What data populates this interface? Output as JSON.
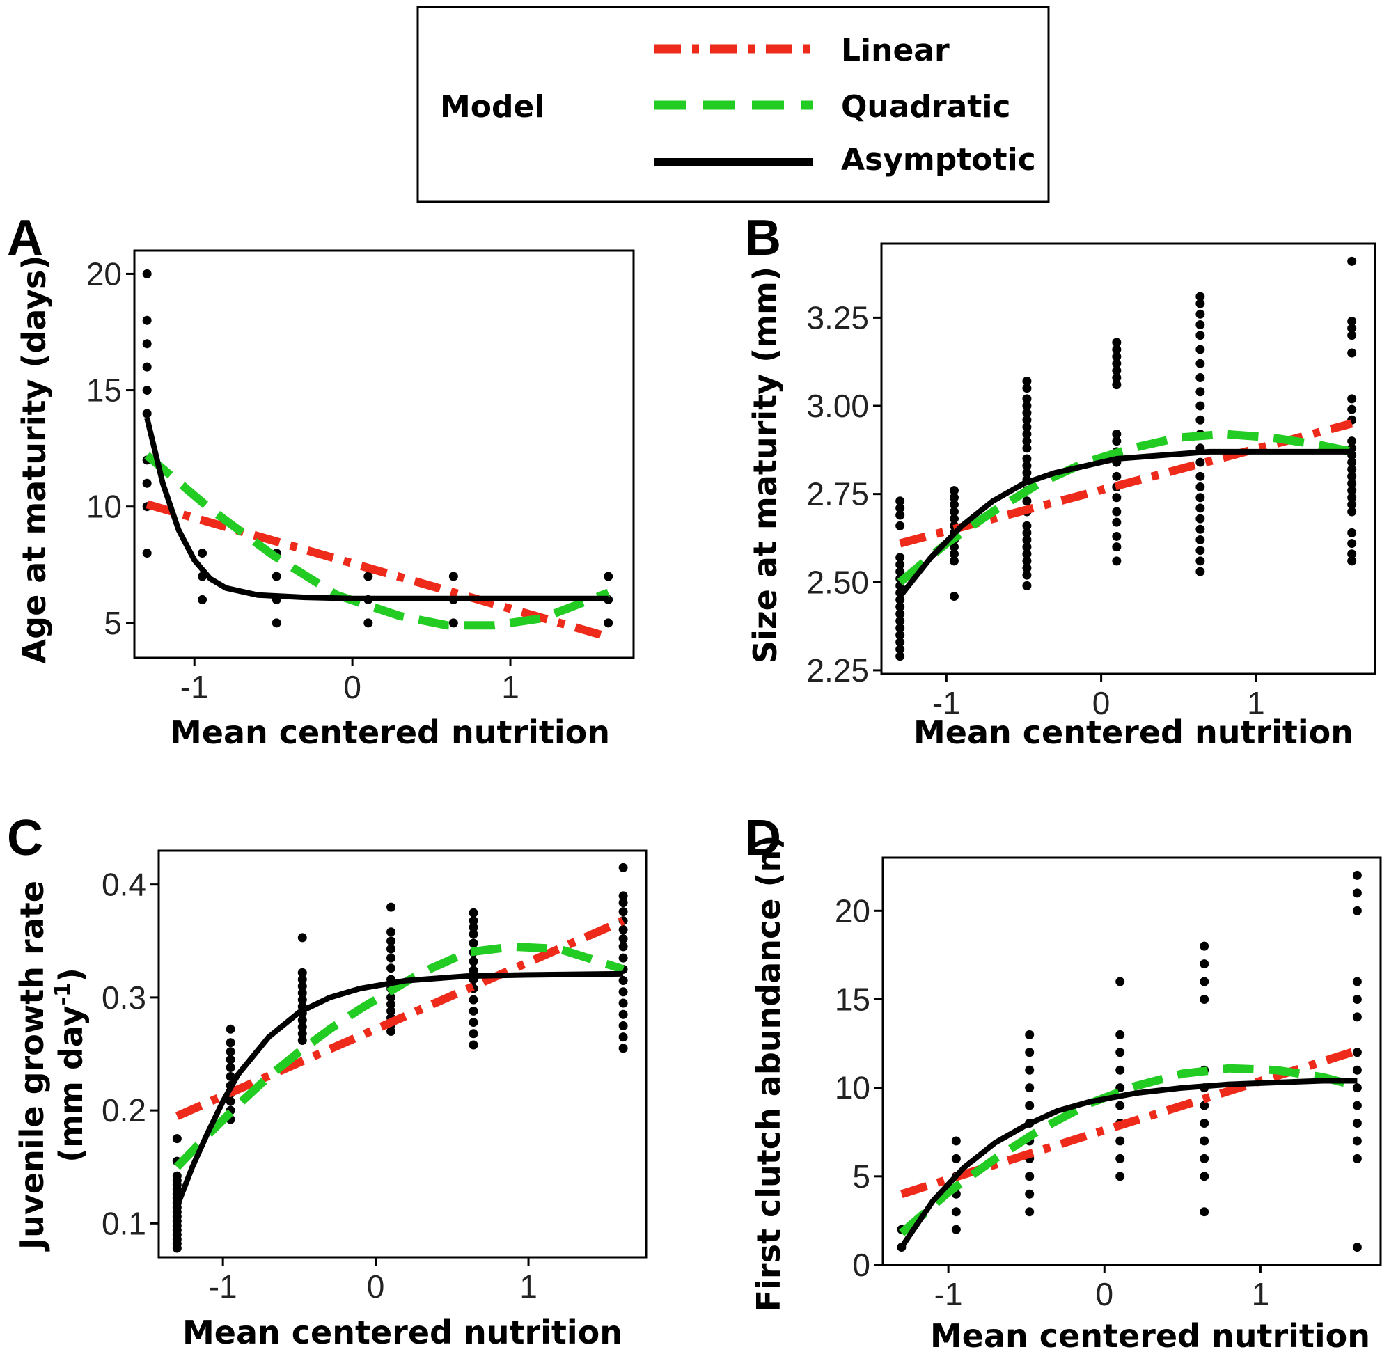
{
  "legend": {
    "title": "Model",
    "entries": [
      {
        "label": "Linear",
        "color": "#ee2b1a",
        "style": "dashdot"
      },
      {
        "label": "Quadratic",
        "color": "#22cc22",
        "style": "dashed"
      },
      {
        "label": "Asymptotic",
        "color": "#000000",
        "style": "solid"
      }
    ]
  },
  "chart_data": [
    {
      "panel": "A",
      "type": "scatter",
      "title": "",
      "xlabel": "Mean centered nutrition",
      "ylabel": "Age at maturity (days)",
      "xlim": [
        -1.38,
        1.78
      ],
      "ylim": [
        3.5,
        21.0
      ],
      "xticks": [
        -1,
        0,
        1
      ],
      "xtick_labels": [
        "-1",
        "0",
        "1"
      ],
      "yticks": [
        5,
        10,
        15,
        20
      ],
      "ytick_labels": [
        "5",
        "10",
        "15",
        "20"
      ],
      "points": {
        "x_levels": [
          -1.3,
          -0.95,
          -0.48,
          0.1,
          0.64,
          1.62
        ],
        "y_values": [
          [
            8,
            10,
            11,
            12,
            14,
            15,
            16,
            17,
            18,
            20
          ],
          [
            6,
            7,
            8
          ],
          [
            5,
            6,
            7,
            8
          ],
          [
            5,
            6,
            7
          ],
          [
            5,
            6,
            7
          ],
          [
            5,
            6,
            7
          ]
        ]
      },
      "fits": [
        {
          "model": "Linear",
          "x": [
            -1.3,
            1.62
          ],
          "y": [
            10.1,
            4.4
          ]
        },
        {
          "model": "Quadratic",
          "x": [
            -1.3,
            -0.9,
            -0.5,
            -0.1,
            0.3,
            0.6,
            0.9,
            1.2,
            1.62
          ],
          "y": [
            12.2,
            9.9,
            7.9,
            6.2,
            5.3,
            4.9,
            4.9,
            5.2,
            6.3
          ]
        },
        {
          "model": "Asymptotic",
          "x": [
            -1.3,
            -1.2,
            -1.1,
            -1.0,
            -0.9,
            -0.8,
            -0.6,
            -0.3,
            0.0,
            0.5,
            1.0,
            1.62
          ],
          "y": [
            13.8,
            11.0,
            9.0,
            7.7,
            6.9,
            6.5,
            6.2,
            6.1,
            6.05,
            6.05,
            6.05,
            6.05
          ]
        }
      ]
    },
    {
      "panel": "B",
      "type": "scatter",
      "title": "",
      "xlabel": "Mean centered nutrition",
      "ylabel": "Size at maturity (mm)",
      "xlim": [
        -1.42,
        1.77
      ],
      "ylim": [
        2.24,
        3.46
      ],
      "xticks": [
        -1,
        0,
        1
      ],
      "xtick_labels": [
        "-1",
        "0",
        "1"
      ],
      "yticks": [
        2.25,
        2.5,
        2.75,
        3.0,
        3.25
      ],
      "ytick_labels": [
        "2.25",
        "2.50",
        "2.75",
        "3.00",
        "3.25"
      ],
      "points": {
        "x_levels": [
          -1.3,
          -0.95,
          -0.48,
          0.1,
          0.64,
          1.62
        ],
        "y_values": [
          [
            2.29,
            2.31,
            2.33,
            2.35,
            2.37,
            2.39,
            2.41,
            2.43,
            2.45,
            2.47,
            2.49,
            2.51,
            2.53,
            2.55,
            2.57,
            2.66,
            2.69,
            2.71,
            2.73
          ],
          [
            2.46,
            2.56,
            2.58,
            2.6,
            2.62,
            2.64,
            2.66,
            2.68,
            2.7,
            2.72,
            2.74,
            2.76
          ],
          [
            2.49,
            2.52,
            2.54,
            2.56,
            2.58,
            2.6,
            2.62,
            2.64,
            2.66,
            2.7,
            2.73,
            2.76,
            2.79,
            2.81,
            2.83,
            2.85,
            2.88,
            2.9,
            2.92,
            2.94,
            2.96,
            2.98,
            3.0,
            3.02,
            3.05,
            3.07
          ],
          [
            2.56,
            2.6,
            2.63,
            2.67,
            2.7,
            2.74,
            2.77,
            2.8,
            2.84,
            2.87,
            2.9,
            2.92,
            3.06,
            3.08,
            3.1,
            3.12,
            3.14,
            3.16,
            3.18
          ],
          [
            2.53,
            2.56,
            2.59,
            2.62,
            2.65,
            2.68,
            2.71,
            2.74,
            2.77,
            2.8,
            2.84,
            2.88,
            2.92,
            2.96,
            3.0,
            3.04,
            3.08,
            3.12,
            3.16,
            3.2,
            3.23,
            3.26,
            3.29,
            3.31
          ],
          [
            2.56,
            2.58,
            2.61,
            2.64,
            2.7,
            2.72,
            2.74,
            2.76,
            2.78,
            2.8,
            2.82,
            2.84,
            2.86,
            2.88,
            2.9,
            2.96,
            2.99,
            3.02,
            3.15,
            3.2,
            3.22,
            3.24,
            3.41
          ]
        ]
      },
      "fits": [
        {
          "model": "Linear",
          "x": [
            -1.3,
            1.62
          ],
          "y": [
            2.61,
            2.95
          ]
        },
        {
          "model": "Quadratic",
          "x": [
            -1.3,
            -1.0,
            -0.7,
            -0.4,
            -0.1,
            0.2,
            0.5,
            0.8,
            1.1,
            1.4,
            1.62
          ],
          "y": [
            2.5,
            2.61,
            2.7,
            2.78,
            2.84,
            2.88,
            2.91,
            2.92,
            2.91,
            2.89,
            2.87
          ]
        },
        {
          "model": "Asymptotic",
          "x": [
            -1.3,
            -1.1,
            -0.9,
            -0.7,
            -0.5,
            -0.3,
            -0.1,
            0.1,
            0.4,
            0.7,
            1.0,
            1.3,
            1.62
          ],
          "y": [
            2.46,
            2.57,
            2.66,
            2.73,
            2.78,
            2.81,
            2.83,
            2.85,
            2.86,
            2.87,
            2.87,
            2.87,
            2.87
          ]
        }
      ]
    },
    {
      "panel": "C",
      "type": "scatter",
      "title": "",
      "xlabel": "Mean centered nutrition",
      "ylabel": "Juvenile growth rate",
      "ylabel_line2": "(mm day",
      "ylabel_sup": "-1",
      "ylabel_close": ")",
      "xlim": [
        -1.42,
        1.77
      ],
      "ylim": [
        0.07,
        0.43
      ],
      "xticks": [
        -1,
        0,
        1
      ],
      "xtick_labels": [
        "-1",
        "0",
        "1"
      ],
      "yticks": [
        0.1,
        0.2,
        0.3,
        0.4
      ],
      "ytick_labels": [
        "0.1",
        "0.2",
        "0.3",
        "0.4"
      ],
      "points": {
        "x_levels": [
          -1.3,
          -0.95,
          -0.48,
          0.1,
          0.64,
          1.62
        ],
        "y_values": [
          [
            0.078,
            0.082,
            0.086,
            0.09,
            0.094,
            0.098,
            0.102,
            0.106,
            0.11,
            0.114,
            0.118,
            0.122,
            0.126,
            0.13,
            0.134,
            0.138,
            0.142,
            0.155,
            0.175
          ],
          [
            0.192,
            0.2,
            0.208,
            0.215,
            0.222,
            0.23,
            0.238,
            0.245,
            0.252,
            0.26,
            0.272
          ],
          [
            0.262,
            0.268,
            0.274,
            0.28,
            0.286,
            0.292,
            0.298,
            0.304,
            0.31,
            0.316,
            0.322,
            0.353
          ],
          [
            0.27,
            0.276,
            0.282,
            0.288,
            0.294,
            0.3,
            0.308,
            0.316,
            0.326,
            0.335,
            0.343,
            0.35,
            0.358,
            0.38
          ],
          [
            0.258,
            0.268,
            0.278,
            0.288,
            0.298,
            0.308,
            0.316,
            0.324,
            0.332,
            0.34,
            0.348,
            0.356,
            0.362,
            0.368,
            0.375
          ],
          [
            0.255,
            0.265,
            0.275,
            0.285,
            0.295,
            0.305,
            0.315,
            0.325,
            0.335,
            0.345,
            0.352,
            0.36,
            0.368,
            0.376,
            0.384,
            0.39,
            0.415
          ]
        ]
      },
      "fits": [
        {
          "model": "Linear",
          "x": [
            -1.3,
            1.62
          ],
          "y": [
            0.195,
            0.368
          ]
        },
        {
          "model": "Quadratic",
          "x": [
            -1.3,
            -1.1,
            -0.9,
            -0.7,
            -0.5,
            -0.3,
            -0.1,
            0.1,
            0.3,
            0.6,
            0.9,
            1.2,
            1.62
          ],
          "y": [
            0.15,
            0.178,
            0.205,
            0.23,
            0.252,
            0.272,
            0.29,
            0.306,
            0.322,
            0.34,
            0.345,
            0.343,
            0.325
          ]
        },
        {
          "model": "Asymptotic",
          "x": [
            -1.3,
            -1.2,
            -1.1,
            -1.0,
            -0.9,
            -0.7,
            -0.5,
            -0.3,
            -0.1,
            0.2,
            0.6,
            1.0,
            1.62
          ],
          "y": [
            0.115,
            0.15,
            0.18,
            0.208,
            0.232,
            0.265,
            0.287,
            0.3,
            0.308,
            0.315,
            0.319,
            0.32,
            0.321
          ]
        }
      ]
    },
    {
      "panel": "D",
      "type": "scatter",
      "title": "",
      "xlabel": "Mean centered nutrition",
      "ylabel": "First clutch abundance (n)",
      "xlim": [
        -1.42,
        1.77
      ],
      "ylim": [
        0,
        23
      ],
      "xticks": [
        -1,
        0,
        1
      ],
      "xtick_labels": [
        "-1",
        "0",
        "1"
      ],
      "yticks": [
        0,
        5,
        10,
        15,
        20
      ],
      "ytick_labels": [
        "0",
        "5",
        "10",
        "15",
        "20"
      ],
      "points": {
        "x_levels": [
          -1.3,
          -0.95,
          -0.48,
          0.1,
          0.64,
          1.62
        ],
        "y_values": [
          [
            1,
            2
          ],
          [
            2,
            3,
            4,
            5,
            6,
            7
          ],
          [
            3,
            4,
            5,
            6,
            7,
            8,
            9,
            10,
            11,
            12,
            13
          ],
          [
            5,
            6,
            7,
            8,
            9,
            10,
            11,
            12,
            13,
            16
          ],
          [
            3,
            5,
            6,
            7,
            8,
            9,
            10,
            11,
            15,
            16,
            17,
            18
          ],
          [
            1,
            6,
            7,
            8,
            9,
            10,
            11,
            12,
            14,
            15,
            16,
            20,
            21,
            22
          ]
        ]
      },
      "fits": [
        {
          "model": "Linear",
          "x": [
            -1.3,
            1.62
          ],
          "y": [
            4.0,
            12.1
          ]
        },
        {
          "model": "Quadratic",
          "x": [
            -1.3,
            -1.0,
            -0.7,
            -0.4,
            -0.1,
            0.2,
            0.5,
            0.8,
            1.1,
            1.4,
            1.62
          ],
          "y": [
            1.8,
            4.1,
            6.0,
            7.7,
            9.1,
            10.1,
            10.8,
            11.1,
            11.0,
            10.6,
            10.1
          ]
        },
        {
          "model": "Asymptotic",
          "x": [
            -1.3,
            -1.1,
            -0.9,
            -0.7,
            -0.5,
            -0.3,
            -0.1,
            0.2,
            0.5,
            0.8,
            1.1,
            1.4,
            1.62
          ],
          "y": [
            1.0,
            3.6,
            5.5,
            6.9,
            7.9,
            8.7,
            9.2,
            9.7,
            10.0,
            10.2,
            10.3,
            10.4,
            10.4
          ]
        }
      ]
    }
  ]
}
